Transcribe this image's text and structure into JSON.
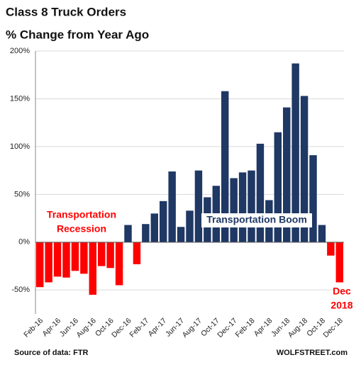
{
  "chart_data": {
    "type": "bar",
    "title": "Class 8 Truck Orders",
    "subtitle": "% Change from Year Ago",
    "categories": [
      "Feb-16",
      null,
      "Apr-16",
      null,
      "Jun-16",
      null,
      "Aug-16",
      null,
      "Oct-16",
      null,
      "Dec-16",
      null,
      "Feb-17",
      null,
      "Apr-17",
      null,
      "Jun-17",
      null,
      "Aug-17",
      null,
      "Oct-17",
      null,
      "Dec-17",
      null,
      "Feb-18",
      null,
      "Apr-18",
      null,
      "Jun-18",
      null,
      "Aug-18",
      null,
      "Oct-18",
      null,
      "Dec-18"
    ],
    "values": [
      -47,
      -42,
      -36,
      -37,
      -30,
      -33,
      -55,
      -25,
      -27,
      -45,
      18,
      -23,
      19,
      30,
      43,
      74,
      16,
      33,
      75,
      47,
      59,
      158,
      67,
      73,
      75,
      103,
      44,
      115,
      141,
      187,
      153,
      91,
      18,
      -14,
      -42
    ],
    "positive_color": "#1f3864",
    "negative_color": "#ff0000",
    "ylim": [
      -75,
      200
    ],
    "yticks": [
      {
        "value": -50,
        "label": "-50%"
      },
      {
        "value": 0,
        "label": "0%"
      },
      {
        "value": 50,
        "label": "50%"
      },
      {
        "value": 100,
        "label": "100%"
      },
      {
        "value": 150,
        "label": "150%"
      },
      {
        "value": 200,
        "label": "200%"
      }
    ],
    "grid": true,
    "annotations": [
      {
        "lines": [
          "Transportation",
          "Recession"
        ],
        "color": "#ff0000"
      },
      {
        "lines": [
          "Transportation Boom"
        ],
        "color": "#1f3864"
      },
      {
        "lines": [
          "Dec",
          "2018"
        ],
        "color": "#ff0000"
      }
    ],
    "source": "Source of data: FTR",
    "credit": "WOLFSTREET.com"
  }
}
